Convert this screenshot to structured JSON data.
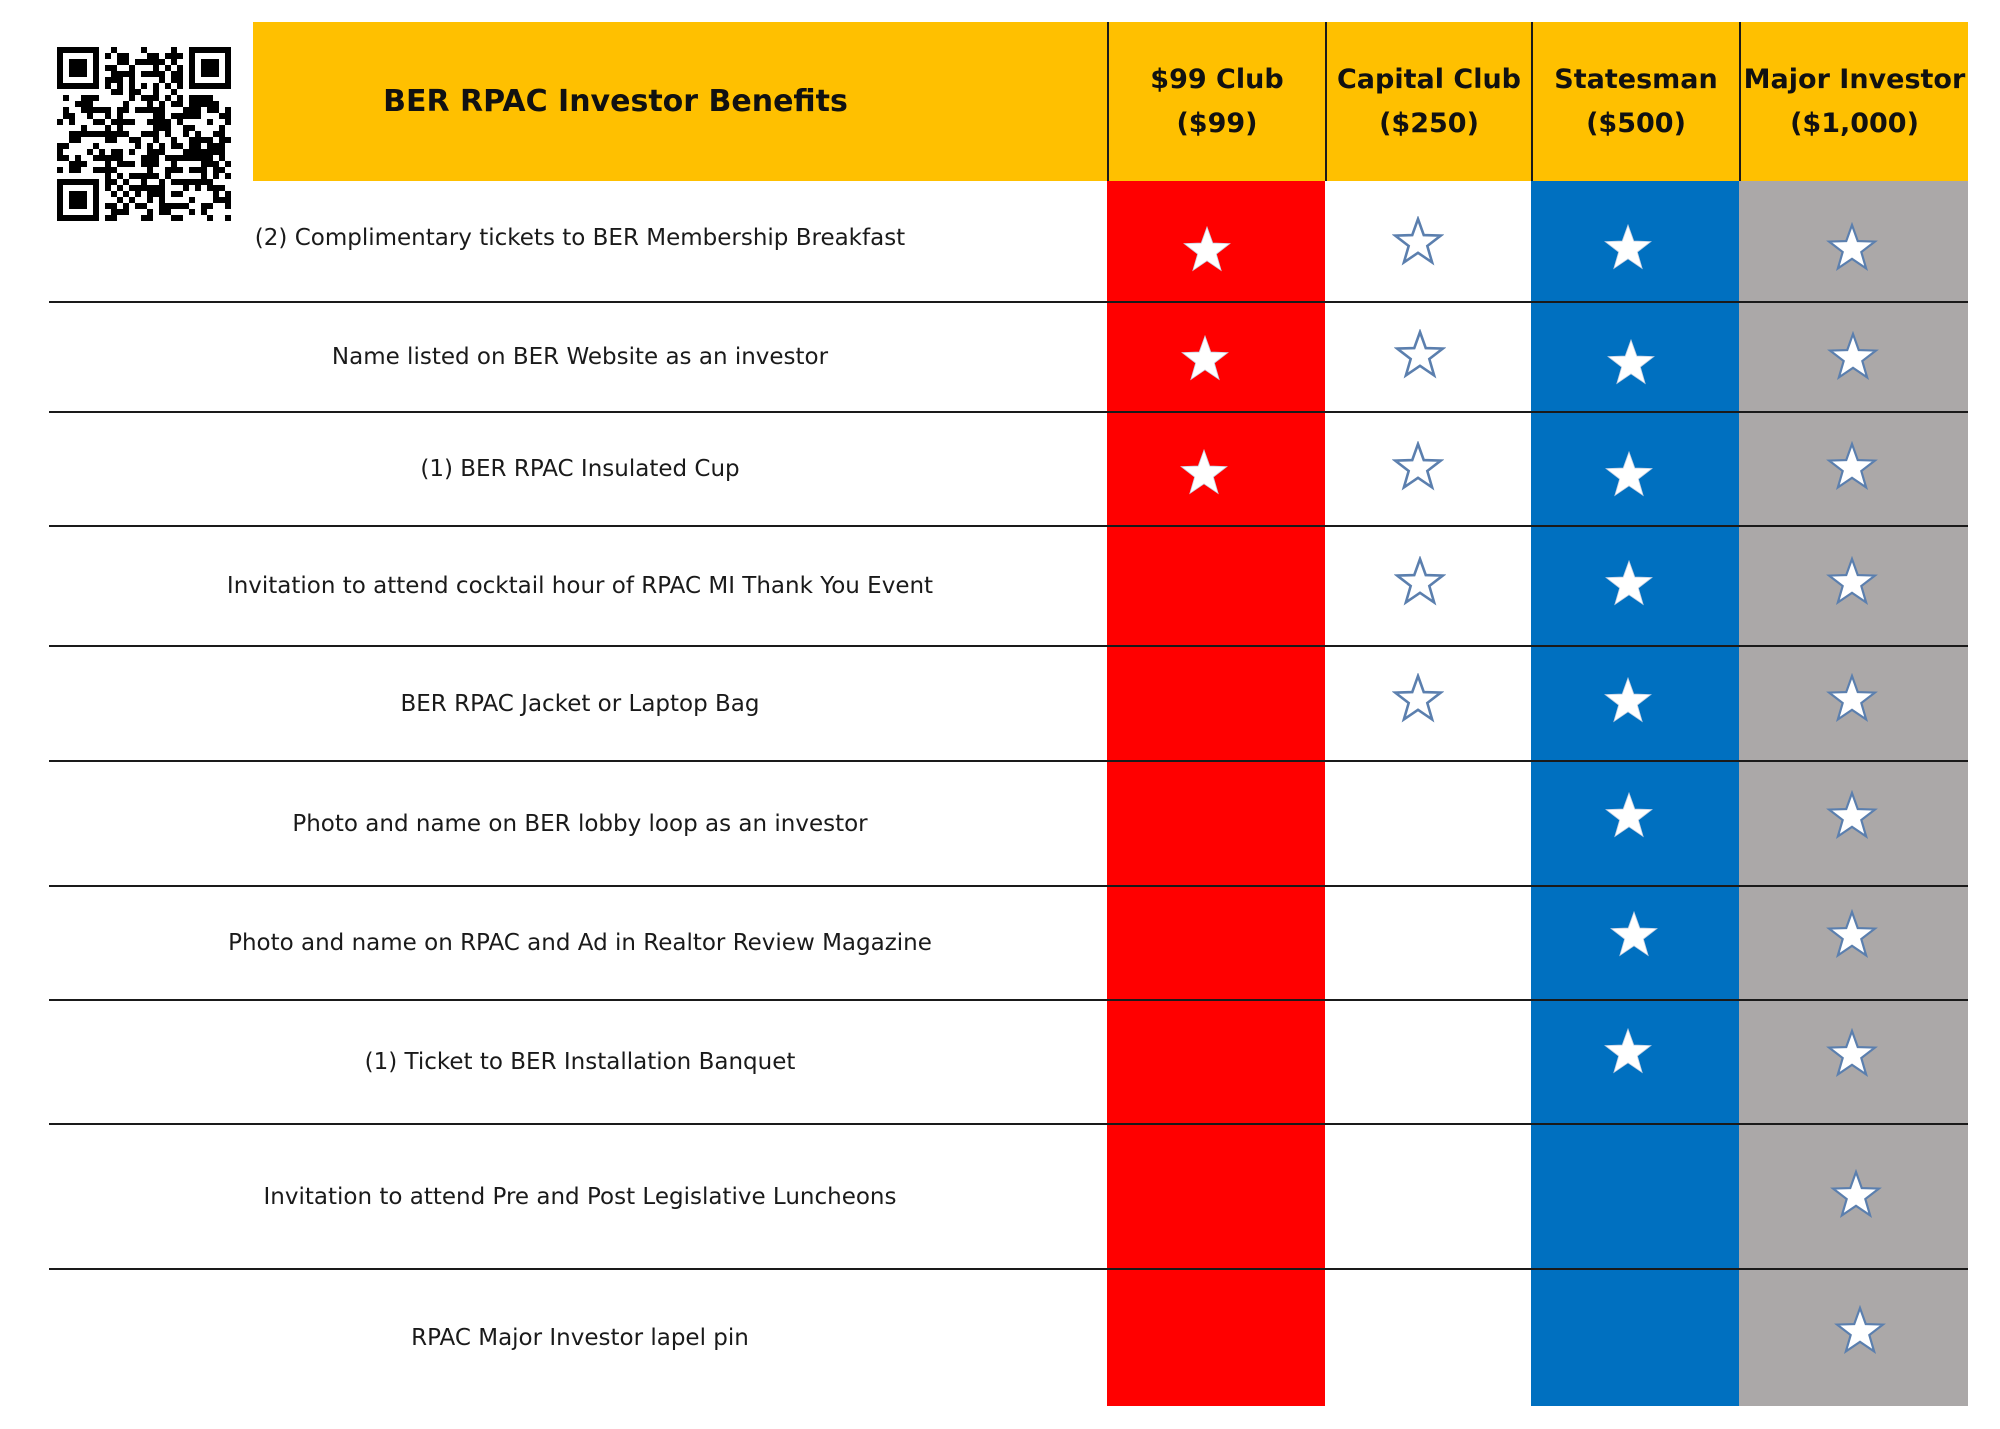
{
  "header": {
    "title": "BER RPAC Investor Benefits"
  },
  "tiers": [
    {
      "name": "$99 Club",
      "price": "($99)",
      "color": "#FF0000",
      "star_style": "solid-white"
    },
    {
      "name": "Capital Club",
      "price": "($250)",
      "color": "#FFFFFF",
      "star_style": "outline-blue"
    },
    {
      "name": "Statesman",
      "price": "($500)",
      "color": "#0070C0",
      "star_style": "solid-white"
    },
    {
      "name": "Major Investor",
      "price": "($1,000)",
      "color": "#ABA8A8",
      "star_style": "white-blue-outline"
    }
  ],
  "benefits": [
    {
      "label": "(2) Complimentary tickets to BER Membership Breakfast",
      "tiers": [
        true,
        true,
        true,
        true
      ]
    },
    {
      "label": "Name listed on BER Website as an investor",
      "tiers": [
        true,
        true,
        true,
        true
      ]
    },
    {
      "label": "(1) BER RPAC Insulated Cup",
      "tiers": [
        true,
        true,
        true,
        true
      ]
    },
    {
      "label": "Invitation to attend cocktail hour of RPAC MI Thank You Event",
      "tiers": [
        false,
        true,
        true,
        true
      ]
    },
    {
      "label": "BER RPAC Jacket  or Laptop Bag",
      "tiers": [
        false,
        true,
        true,
        true
      ]
    },
    {
      "label": "Photo and name on BER lobby loop as an investor",
      "tiers": [
        false,
        false,
        true,
        true
      ]
    },
    {
      "label": "Photo and name on RPAC and  Ad in Realtor Review Magazine",
      "tiers": [
        false,
        false,
        true,
        true
      ]
    },
    {
      "label": "(1) Ticket to BER Installation Banquet",
      "tiers": [
        false,
        false,
        true,
        true
      ]
    },
    {
      "label": "Invitation to attend Pre and Post Legislative Luncheons",
      "tiers": [
        false,
        false,
        false,
        true
      ]
    },
    {
      "label": "RPAC Major Investor lapel pin",
      "tiers": [
        false,
        false,
        false,
        true
      ]
    }
  ],
  "icons": {
    "qr": "qr-code-icon",
    "benefit_mark": "star-icon"
  },
  "colors": {
    "header": "#FFC000",
    "star_outline": "#5B7FAE"
  }
}
